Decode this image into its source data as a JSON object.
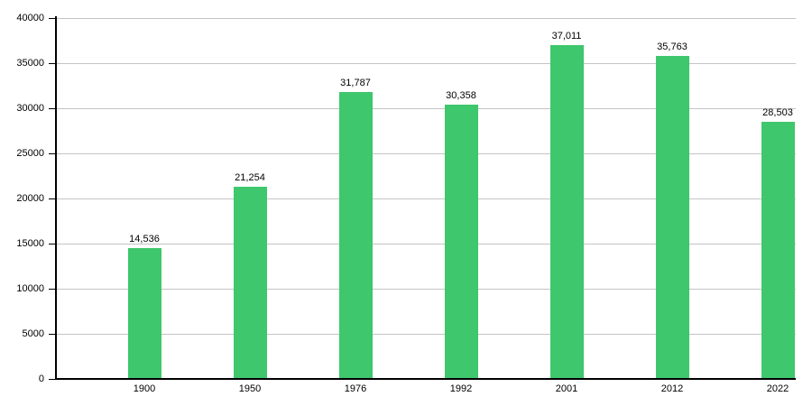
{
  "chart_data": {
    "type": "bar",
    "title": "",
    "xlabel": "",
    "ylabel": "",
    "categories": [
      "1900",
      "1950",
      "1976",
      "1992",
      "2001",
      "2012",
      "2022"
    ],
    "values": [
      14536,
      21254,
      31787,
      30358,
      37011,
      35763,
      28503
    ],
    "value_labels": [
      "14,536",
      "21,254",
      "31,787",
      "30,358",
      "37,011",
      "35,763",
      "28,503"
    ],
    "ylim": [
      0,
      40000
    ],
    "ytick_interval": 5000,
    "ytick_labels": [
      "0",
      "5000",
      "10000",
      "15000",
      "20000",
      "25000",
      "30000",
      "35000",
      "40000"
    ],
    "grid": "horizontal",
    "legend": "none",
    "bar_color": "#3ec76c"
  },
  "colors": {
    "bar": "#3ec76c",
    "gridline": "#c4c4c4",
    "axis": "#000000",
    "text": "#000000",
    "background": "#ffffff"
  }
}
